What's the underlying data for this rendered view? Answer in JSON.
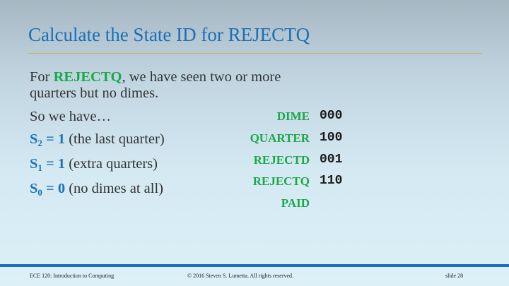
{
  "slide": {
    "title": "Calculate the State ID for REJECTQ",
    "intro": {
      "prefix": "For ",
      "state": "REJECTQ",
      "suffix": ", we have seen two or more",
      "line2": "quarters but no dimes."
    },
    "so_we_have": "So we have…",
    "bits": [
      {
        "sym": "S",
        "sub": "2",
        "value": " = 1",
        "desc": " (the last quarter)"
      },
      {
        "sym": "S",
        "sub": "1",
        "value": " = 1",
        "desc": " (extra quarters)"
      },
      {
        "sym": "S",
        "sub": "0",
        "value": " = 0",
        "desc": " (no dimes at all)"
      }
    ],
    "states": [
      {
        "name": "DIME",
        "code": "000"
      },
      {
        "name": "QUARTER",
        "code": "100"
      },
      {
        "name": "REJECTD",
        "code": "001"
      },
      {
        "name": "REJECTQ",
        "code": "110"
      },
      {
        "name": "PAID",
        "code": ""
      }
    ]
  },
  "footer": {
    "course": "ECE 120: Introduction to Computing",
    "copyright": "© 2016 Steven S. Lumetta.  All rights reserved.",
    "slide_number": "slide 28"
  }
}
